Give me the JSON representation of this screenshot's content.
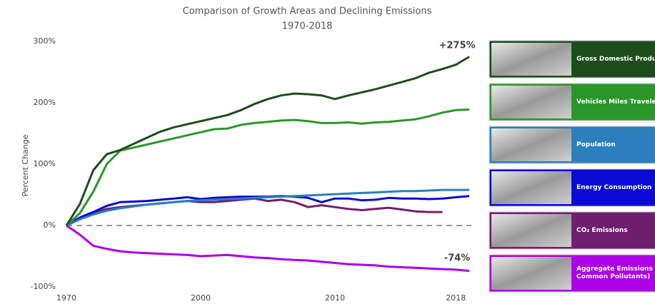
{
  "chart_data": {
    "type": "line",
    "title": "Comparison of Growth Areas and Declining Emissions",
    "subtitle": "1970-2018",
    "y_label": "Percent Change",
    "categories": [
      "1970",
      null,
      null,
      null,
      null,
      null,
      null,
      null,
      null,
      null,
      "2000",
      null,
      null,
      null,
      null,
      null,
      null,
      null,
      null,
      null,
      "2010",
      null,
      null,
      null,
      null,
      null,
      null,
      null,
      null,
      "2018",
      null
    ],
    "ylim": [
      -100,
      300
    ],
    "yticks": [
      {
        "value": -100,
        "label": "-100%"
      },
      {
        "value": 0,
        "label": "0%"
      },
      {
        "value": 100,
        "label": "100%"
      },
      {
        "value": 200,
        "label": "200%"
      },
      {
        "value": 300,
        "label": "300%"
      }
    ],
    "zero_line": true,
    "annotations": [
      "+275%",
      "-74%"
    ],
    "series": [
      {
        "name": "Gross Domestic Product",
        "color": "#1d4d1d",
        "values": [
          0,
          35,
          90,
          116,
          123,
          133,
          143,
          153,
          160,
          165,
          170,
          175,
          180,
          188,
          198,
          206,
          212,
          215,
          214,
          212,
          206,
          212,
          217,
          222,
          228,
          234,
          240,
          249,
          255,
          262,
          275
        ]
      },
      {
        "name": "Vehicles Miles Traveled",
        "color": "#2a962a",
        "values": [
          0,
          20,
          55,
          100,
          122,
          127,
          132,
          137,
          142,
          147,
          152,
          157,
          158,
          164,
          167,
          169,
          171,
          172,
          170,
          167,
          167,
          168,
          166,
          168,
          169,
          171,
          173,
          178,
          184,
          188,
          189
        ]
      },
      {
        "name": "Population",
        "color": "#2c7fbd",
        "values": [
          0,
          10,
          18,
          24,
          28,
          31,
          34,
          36,
          38,
          40,
          41,
          42,
          43,
          44,
          45,
          46,
          47,
          48,
          49,
          50,
          51,
          52,
          53,
          54,
          55,
          56,
          56,
          57,
          58,
          58,
          58
        ]
      },
      {
        "name": "Energy Consumption",
        "color": "#0a0ad2",
        "values": [
          0,
          13,
          22,
          32,
          38,
          39,
          40,
          42,
          44,
          46,
          43,
          45,
          46,
          47,
          47,
          47,
          48,
          47,
          45,
          38,
          44,
          44,
          41,
          42,
          45,
          44,
          44,
          43,
          44,
          46,
          48
        ]
      },
      {
        "name": "CO₂ Emissions",
        "color": "#6f1f6f",
        "values": [
          0,
          12,
          20,
          27,
          30,
          32,
          34,
          36,
          38,
          40,
          38,
          38,
          40,
          42,
          44,
          40,
          42,
          38,
          30,
          33,
          30,
          27,
          25,
          27,
          29,
          26,
          23,
          22,
          22,
          null,
          null
        ]
      },
      {
        "name": "Aggregate Emissions (Six Common Pollutants)",
        "color": "#ac00e6",
        "values": [
          0,
          -15,
          -33,
          -38,
          -42,
          -44,
          -45,
          -46,
          -47,
          -48,
          -50,
          -49,
          -48,
          -50,
          -52,
          -53,
          -55,
          -56,
          -57,
          -59,
          -61,
          -63,
          -64,
          -65,
          -67,
          -68,
          -69,
          -70,
          -71,
          -72,
          -74
        ]
      }
    ]
  }
}
